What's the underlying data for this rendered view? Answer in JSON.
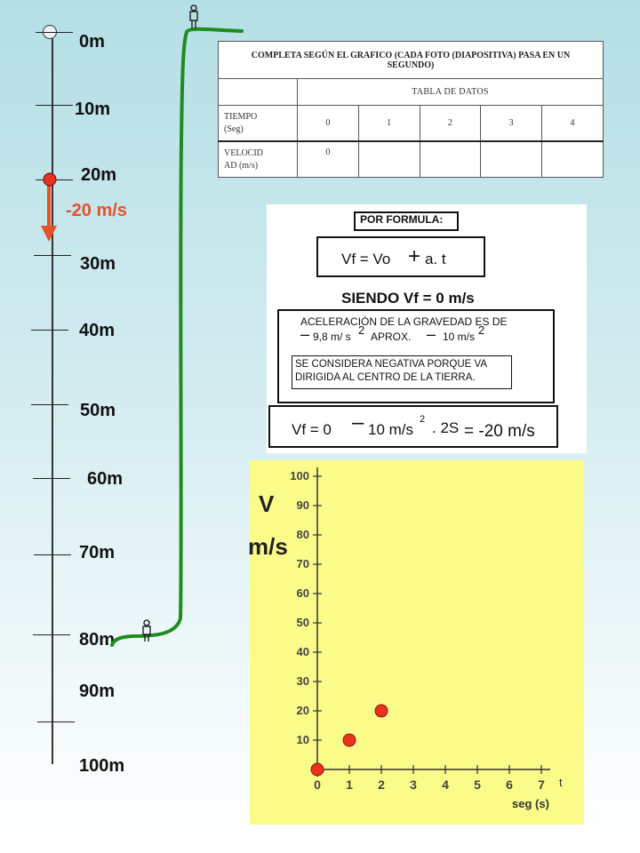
{
  "scale": {
    "labels": [
      "0m",
      "10m",
      "20m",
      "30m",
      "40m",
      "50m",
      "60m",
      "70m",
      "80m",
      "90m",
      "100m"
    ],
    "speed_label": "-20 m/s",
    "arrow_color": "#e8502a",
    "path_color": "#1e8c1e"
  },
  "table": {
    "title": "COMPLETA SEGÚN EL GRAFICO  (CADA FOTO (DIAPOSITIVA) PASA EN UN SEGUNDO)",
    "header": "TABLA DE DATOS",
    "time_label_1": "TIEMPO",
    "time_label_2": "(Seg)",
    "velocity_label_1": "VELOCID",
    "velocity_label_2": "AD  (m/s)",
    "times": [
      "0",
      "1",
      "2",
      "3",
      "4"
    ],
    "velocities": [
      "0",
      "",
      "",
      "",
      ""
    ]
  },
  "formula": {
    "title": "POR FORMULA:",
    "equation_left": "Vf =  Vo",
    "equation_op": "+",
    "equation_right": "a. t",
    "condition": "SIENDO Vf = 0 m/s",
    "gravity_line1": "ACELERACIÓN DE LA GRAVEDAD ES DE",
    "gravity_minus1": "–",
    "gravity_val1": "9,8 m/ s",
    "gravity_exp1": "2",
    "gravity_approx": "APROX.",
    "gravity_minus2": "–",
    "gravity_val2": "10 m/s",
    "gravity_exp2": "2",
    "note": "SE CONSIDERA NEGATIVA PORQUE VA DIRIGIDA AL CENTRO DE LA TIERRA.",
    "result_left": "Vf =  0",
    "result_minus": "–",
    "result_mid": "10 m/s",
    "result_exp": "2",
    "result_time": ". 2S",
    "result_right": "= -20 m/s"
  },
  "chart_data": {
    "type": "scatter",
    "ylabel_big_1": "V",
    "ylabel_big_2": "m/s",
    "xlabel": "seg (s)",
    "x_axis_letter": "t",
    "x_ticks": [
      "0",
      "1",
      "2",
      "3",
      "4",
      "5",
      "6",
      "7"
    ],
    "y_ticks": [
      "10",
      "20",
      "30",
      "40",
      "50",
      "60",
      "70",
      "80",
      "90",
      "100"
    ],
    "xlim": [
      0,
      7
    ],
    "ylim": [
      0,
      100
    ],
    "points": [
      {
        "x": 0,
        "y": 0
      },
      {
        "x": 1,
        "y": 10
      },
      {
        "x": 2,
        "y": 20
      }
    ],
    "point_color": "#e8321e",
    "background": "#fbfb8a"
  }
}
